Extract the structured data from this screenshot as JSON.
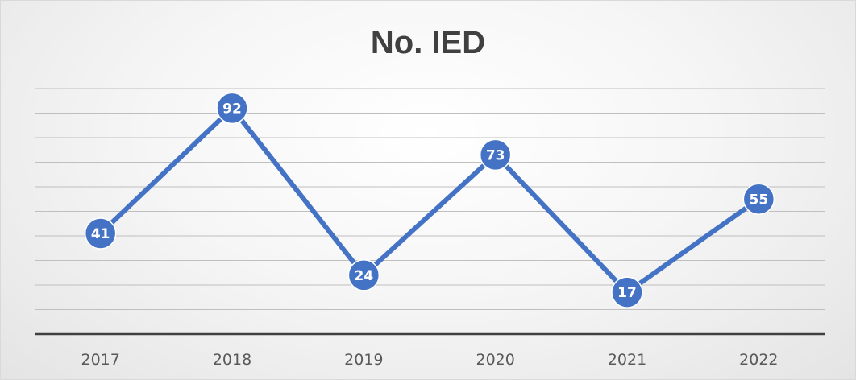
{
  "chart_data": {
    "type": "line",
    "title": "No. IED",
    "xlabel": "",
    "ylabel": "",
    "categories": [
      "2017",
      "2018",
      "2019",
      "2020",
      "2021",
      "2022"
    ],
    "series": [
      {
        "values": [
          41,
          92,
          24,
          73,
          17,
          55
        ]
      }
    ],
    "ylim": [
      0,
      100
    ],
    "grid": true,
    "legend": "none",
    "data_labels": true,
    "line_color": "#4472c4",
    "marker_color": "#4472c4"
  }
}
